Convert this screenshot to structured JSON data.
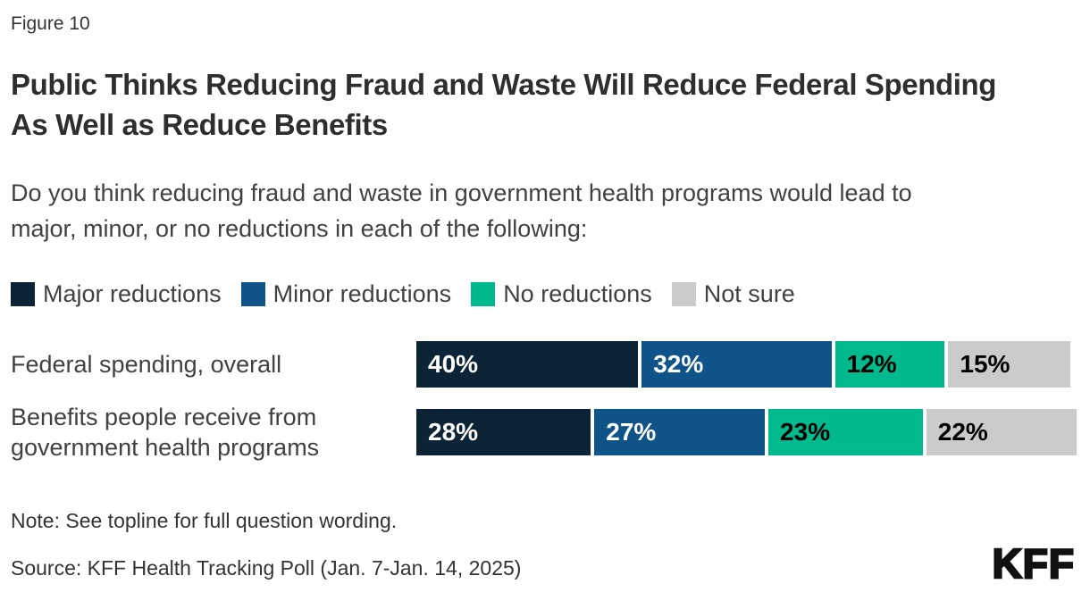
{
  "figure_label": "Figure 10",
  "title": "Public Thinks Reducing Fraud and Waste Will Reduce Federal Spending As Well as Reduce Benefits",
  "question": "Do you think reducing fraud and waste in government health programs would lead to major, minor, or no reductions in each of the following:",
  "note": "Note: See topline for full question wording.",
  "source": "Source: KFF Health Tracking Poll (Jan. 7-Jan. 14, 2025)",
  "logo": "KFF",
  "colors": {
    "major": "#0C2435",
    "minor": "#0E5489",
    "none": "#00B98C",
    "not_sure": "#CBCBCB",
    "title_text": "#2E2E2E",
    "body_text": "#414141"
  },
  "chart_data": {
    "type": "bar",
    "orientation": "horizontal-stacked",
    "title": "Public Thinks Reducing Fraud and Waste Will Reduce Federal Spending As Well as Reduce Benefits",
    "subtitle": "Do you think reducing fraud and waste in government health programs would lead to major, minor, or no reductions in each of the following:",
    "categories": [
      "Federal spending, overall",
      "Benefits people receive from government health programs"
    ],
    "series": [
      {
        "name": "Major reductions",
        "color": "#0C2435",
        "text_color": "#FFFFFF",
        "values": [
          40,
          28
        ]
      },
      {
        "name": "Minor reductions",
        "color": "#0E5489",
        "text_color": "#FFFFFF",
        "values": [
          32,
          27
        ]
      },
      {
        "name": "No reductions",
        "color": "#00B98C",
        "text_color": "#000000",
        "values": [
          12,
          23
        ]
      },
      {
        "name": "Not sure",
        "color": "#CBCBCB",
        "text_color": "#000000",
        "values": [
          15,
          22
        ]
      }
    ],
    "value_format": "percent",
    "legend_position": "top",
    "xlim": [
      0,
      100
    ],
    "grid": false
  }
}
